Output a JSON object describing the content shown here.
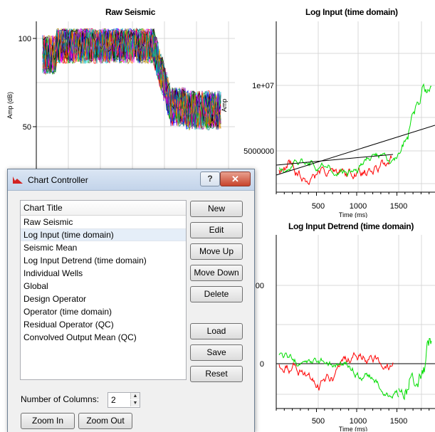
{
  "charts": {
    "raw_seismic": {
      "title": "Raw Seismic",
      "ylabel": "Amp (dB)",
      "y_ticks": [
        "100",
        "50"
      ]
    },
    "log_input": {
      "title": "Log Input (time domain)",
      "ylabel": "Amp",
      "xlabel": "Time (ms)",
      "y_ticks": [
        "1e+07",
        "5000000"
      ],
      "x_ticks": [
        "500",
        "1000",
        "1500"
      ]
    },
    "log_input_detrend": {
      "title": "Log Input Detrend (time domain)",
      "xlabel": "Time (ms)",
      "y_ticks": [
        "00",
        "0"
      ],
      "x_ticks": [
        "500",
        "1000",
        "1500"
      ]
    }
  },
  "dialog": {
    "title": "Chart Controller",
    "help_label": "?",
    "close_label": "✕",
    "list_header": "Chart Title",
    "selected_index": 1,
    "items": [
      "Raw Seismic",
      "Log Input (time domain)",
      "Seismic Mean",
      "Log Input Detrend (time domain)",
      "Individual Wells",
      "Global",
      "Design Operator",
      "Operator (time domain)",
      "Residual Operator (QC)",
      "Convolved Output Mean (QC)"
    ],
    "buttons": {
      "new": "New",
      "edit": "Edit",
      "move_up": "Move Up",
      "move_down": "Move Down",
      "delete": "Delete",
      "load": "Load",
      "save": "Save",
      "reset": "Reset",
      "zoom_in": "Zoom In",
      "zoom_out": "Zoom Out"
    },
    "columns_label": "Number of Columns:",
    "columns_value": "2"
  },
  "colors": {
    "red_series": "#ff0000",
    "green_series": "#00dd00",
    "trend_line": "#000000",
    "grid": "#d9d9d9"
  }
}
